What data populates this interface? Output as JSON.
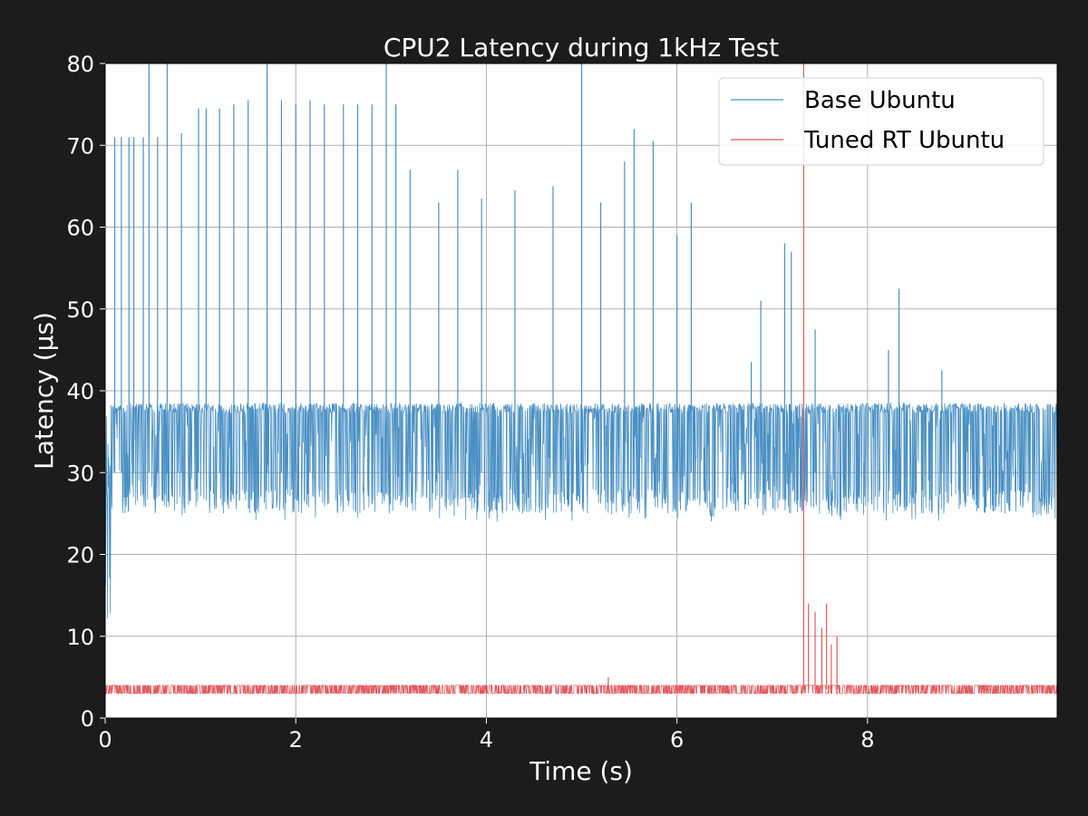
{
  "figure": {
    "background": "#1c1c1c",
    "plot_background": "#ffffff",
    "text_color": "#ffffff",
    "grid_color": "#b0b0b0"
  },
  "chart_data": {
    "type": "line",
    "title": "CPU2 Latency during 1kHz Test",
    "xlabel": "Time (s)",
    "ylabel": "Latency (µs)",
    "xlim": [
      0,
      9.99
    ],
    "ylim": [
      0,
      80
    ],
    "xticks": [
      0,
      2,
      4,
      6,
      8
    ],
    "xtick_labels": [
      "0",
      "2",
      "4",
      "6",
      "8"
    ],
    "yticks": [
      0,
      10,
      20,
      30,
      40,
      50,
      60,
      70,
      80
    ],
    "ytick_labels": [
      "0",
      "10",
      "20",
      "30",
      "40",
      "50",
      "60",
      "70",
      "80"
    ],
    "grid": true,
    "legend": {
      "placement": "top-right",
      "entries": [
        "Base Ubuntu",
        "Tuned RT Ubuntu"
      ]
    },
    "series": [
      {
        "name": "Base Ubuntu",
        "color": "#4a90c4",
        "baseline_range": [
          24,
          38.5
        ],
        "spikes": [
          {
            "x": 0.1,
            "y": 71
          },
          {
            "x": 0.17,
            "y": 71
          },
          {
            "x": 0.25,
            "y": 71
          },
          {
            "x": 0.3,
            "y": 71
          },
          {
            "x": 0.4,
            "y": 71
          },
          {
            "x": 0.46,
            "y": 80
          },
          {
            "x": 0.55,
            "y": 71
          },
          {
            "x": 0.65,
            "y": 80
          },
          {
            "x": 0.8,
            "y": 71.5
          },
          {
            "x": 0.98,
            "y": 74.5
          },
          {
            "x": 1.06,
            "y": 74.5
          },
          {
            "x": 1.2,
            "y": 74.5
          },
          {
            "x": 1.35,
            "y": 75
          },
          {
            "x": 1.5,
            "y": 75.5
          },
          {
            "x": 1.7,
            "y": 80
          },
          {
            "x": 1.85,
            "y": 75.5
          },
          {
            "x": 2.0,
            "y": 75
          },
          {
            "x": 2.15,
            "y": 75.5
          },
          {
            "x": 2.3,
            "y": 75
          },
          {
            "x": 2.5,
            "y": 75
          },
          {
            "x": 2.65,
            "y": 75
          },
          {
            "x": 2.8,
            "y": 75
          },
          {
            "x": 2.95,
            "y": 80
          },
          {
            "x": 3.05,
            "y": 75
          },
          {
            "x": 3.2,
            "y": 67
          },
          {
            "x": 3.5,
            "y": 63
          },
          {
            "x": 3.7,
            "y": 67
          },
          {
            "x": 3.95,
            "y": 63.5
          },
          {
            "x": 4.3,
            "y": 64.5
          },
          {
            "x": 4.7,
            "y": 65
          },
          {
            "x": 5.0,
            "y": 80
          },
          {
            "x": 5.2,
            "y": 63
          },
          {
            "x": 5.45,
            "y": 68
          },
          {
            "x": 5.55,
            "y": 72
          },
          {
            "x": 5.75,
            "y": 70.5
          },
          {
            "x": 6.0,
            "y": 59
          },
          {
            "x": 6.15,
            "y": 63
          },
          {
            "x": 6.78,
            "y": 43.5
          },
          {
            "x": 6.88,
            "y": 51
          },
          {
            "x": 7.13,
            "y": 58
          },
          {
            "x": 7.2,
            "y": 57
          },
          {
            "x": 7.45,
            "y": 47.5
          },
          {
            "x": 8.22,
            "y": 45
          },
          {
            "x": 8.33,
            "y": 52.5
          },
          {
            "x": 8.78,
            "y": 42.5
          }
        ]
      },
      {
        "name": "Tuned RT Ubuntu",
        "color": "#e05a5e",
        "baseline_range": [
          3,
          4
        ],
        "spikes": [
          {
            "x": 7.33,
            "y": 80
          },
          {
            "x": 7.38,
            "y": 14
          },
          {
            "x": 7.45,
            "y": 13
          },
          {
            "x": 7.52,
            "y": 11
          },
          {
            "x": 7.57,
            "y": 14
          },
          {
            "x": 7.62,
            "y": 9
          },
          {
            "x": 7.68,
            "y": 10
          },
          {
            "x": 5.28,
            "y": 5
          }
        ]
      }
    ]
  }
}
